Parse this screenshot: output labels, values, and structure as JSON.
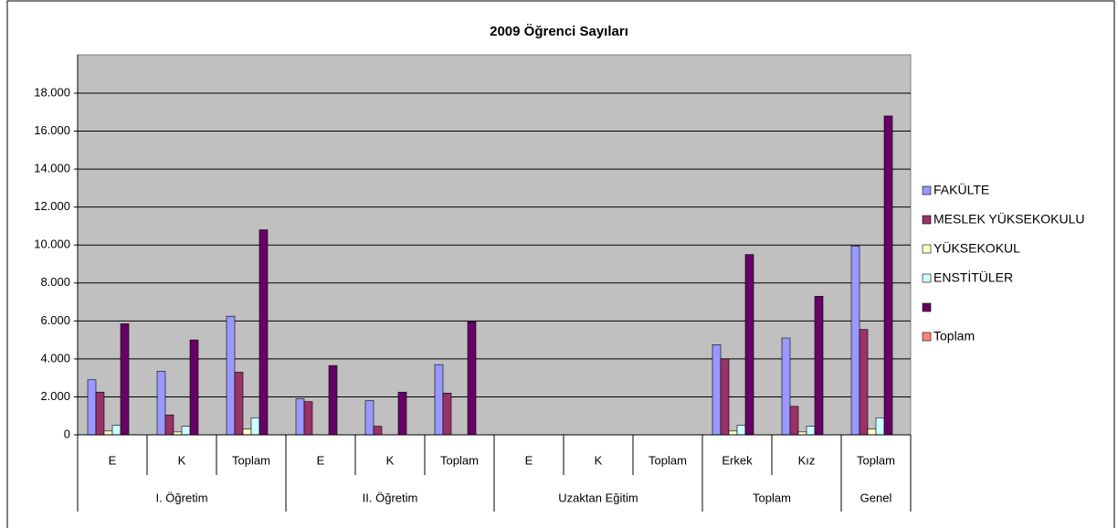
{
  "chart_data": {
    "type": "bar",
    "title": "2009 Öğrenci Sayıları",
    "groups": [
      {
        "label": "I. Öğretim",
        "categories": [
          "E",
          "K",
          "Toplam"
        ]
      },
      {
        "label": "II. Öğretim",
        "categories": [
          "E",
          "K",
          "Toplam"
        ]
      },
      {
        "label": "Uzaktan Eğitim",
        "categories": [
          "E",
          "K",
          "Toplam"
        ]
      },
      {
        "label": "Toplam",
        "categories": [
          "Erkek",
          "Kız"
        ]
      },
      {
        "label": "Genel",
        "categories": [
          "Toplam"
        ]
      }
    ],
    "series": [
      {
        "name": "FAKÜLTE",
        "color": "#9999ff",
        "values": [
          2900,
          3350,
          6250,
          1900,
          1800,
          3700,
          0,
          0,
          0,
          4750,
          5100,
          9950
        ]
      },
      {
        "name": "MESLEK YÜKSEKOKULU",
        "color": "#993366",
        "values": [
          2250,
          1050,
          3300,
          1750,
          450,
          2200,
          0,
          0,
          0,
          4000,
          1500,
          5550
        ]
      },
      {
        "name": "YÜKSEKOKUL",
        "color": "#ffffcc",
        "values": [
          200,
          150,
          300,
          0,
          0,
          0,
          0,
          0,
          0,
          200,
          150,
          300
        ]
      },
      {
        "name": "ENSTİTÜLER",
        "color": "#ccffff",
        "values": [
          500,
          450,
          900,
          0,
          0,
          0,
          0,
          0,
          0,
          500,
          450,
          900
        ]
      },
      {
        "name": null,
        "color": "#660066",
        "values": [
          5850,
          5000,
          10800,
          3650,
          2250,
          5950,
          0,
          0,
          0,
          9500,
          7300,
          16800
        ]
      },
      {
        "name": "Toplam",
        "color": "#ff8080",
        "values": [
          0,
          0,
          0,
          0,
          0,
          0,
          0,
          0,
          0,
          0,
          0,
          0
        ]
      }
    ],
    "ylim": [
      0,
      18000
    ],
    "yticks": [
      0,
      {
        "value": 2000,
        "label": "2.000"
      },
      {
        "value": 4000,
        "label": "4.000"
      },
      {
        "value": 6000,
        "label": "6.000"
      },
      {
        "value": 8000,
        "label": "8.000"
      },
      {
        "value": 10000,
        "label": "10.000"
      },
      {
        "value": 12000,
        "label": "12.000"
      },
      {
        "value": 14000,
        "label": "14.000"
      },
      {
        "value": 16000,
        "label": "16.000"
      },
      {
        "value": 18000,
        "label": "18.000"
      }
    ],
    "grid": true,
    "legend": "right"
  }
}
